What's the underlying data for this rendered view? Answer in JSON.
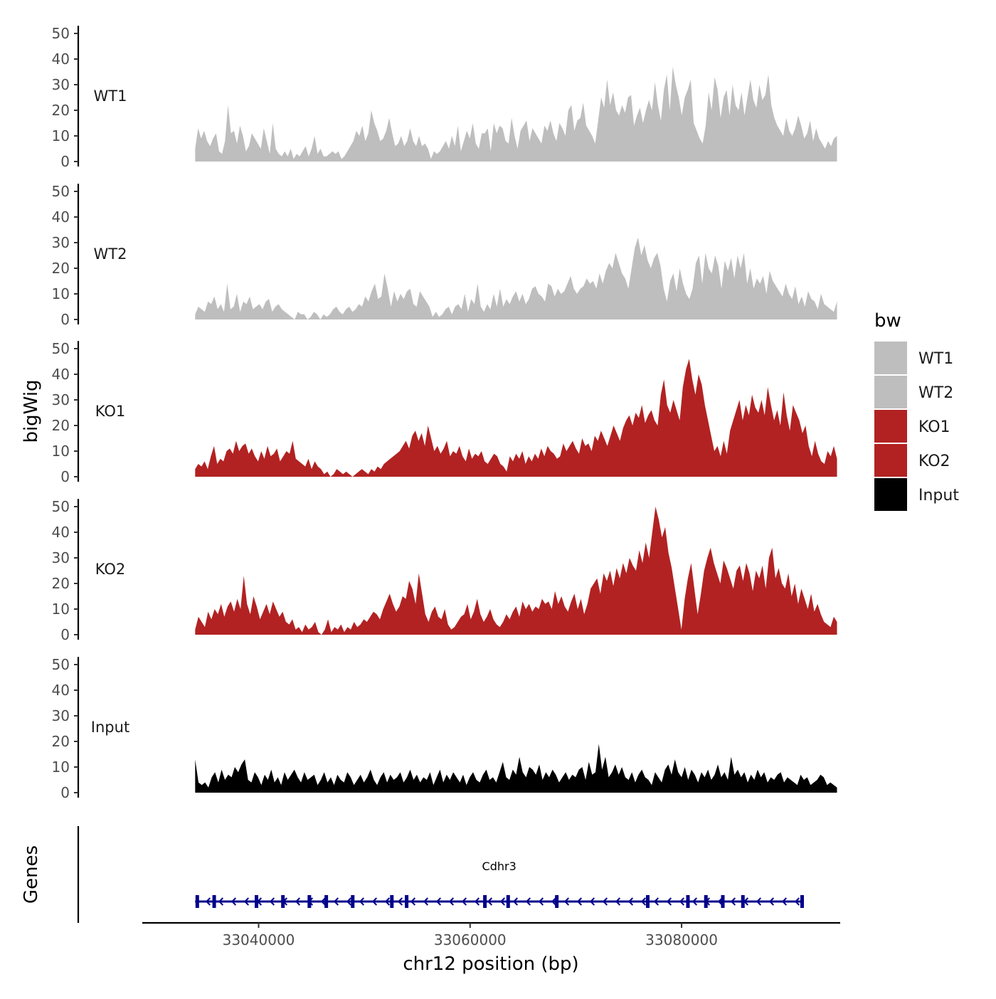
{
  "chart_data": {
    "type": "area",
    "description_title": "",
    "y_axis_title": "bigWig",
    "x_axis_title": "chr12 position (bp)",
    "genes_axis_title": "Genes",
    "xlim": [
      33029000,
      33095000
    ],
    "signal_range_bp": [
      33034000,
      33094700
    ],
    "ylim": [
      0,
      53
    ],
    "y_ticks": [
      0,
      10,
      20,
      30,
      40,
      50
    ],
    "y_tick_labels": [
      "0",
      "10",
      "20",
      "30",
      "40",
      "50"
    ],
    "x_ticks": [
      33040000,
      33060000,
      33080000
    ],
    "x_tick_labels": [
      "33040000",
      "33060000",
      "33080000"
    ],
    "legend": {
      "title": "bw",
      "entries": [
        {
          "label": "WT1",
          "color": "#bebebe"
        },
        {
          "label": "WT2",
          "color": "#bebebe"
        },
        {
          "label": "KO1",
          "color": "#b22222"
        },
        {
          "label": "KO2",
          "color": "#b22222"
        },
        {
          "label": "Input",
          "color": "#000000"
        }
      ]
    },
    "tracks": [
      {
        "name": "WT1",
        "color": "#bebebe",
        "values": [
          5,
          13,
          9,
          12,
          8,
          6,
          9,
          11,
          4,
          3,
          8,
          22,
          11,
          12,
          7,
          14,
          10,
          4,
          6,
          11,
          9,
          7,
          5,
          13,
          8,
          3,
          15,
          5,
          3,
          2,
          4,
          2,
          5,
          1,
          3,
          2,
          4,
          6,
          2,
          5,
          10,
          3,
          5,
          2,
          2,
          3,
          4,
          3,
          4,
          1,
          2,
          4,
          6,
          8,
          12,
          10,
          14,
          8,
          11,
          20,
          15,
          12,
          8,
          9,
          12,
          17,
          11,
          6,
          7,
          10,
          6,
          8,
          13,
          8,
          6,
          10,
          6,
          7,
          5,
          1,
          4,
          3,
          4,
          6,
          8,
          5,
          10,
          6,
          14,
          4,
          8,
          12,
          9,
          15,
          7,
          5,
          11,
          11,
          13,
          4,
          15,
          11,
          14,
          13,
          8,
          7,
          17,
          10,
          5,
          12,
          14,
          16,
          8,
          13,
          11,
          9,
          7,
          14,
          12,
          16,
          11,
          8,
          15,
          13,
          10,
          20,
          22,
          12,
          16,
          17,
          23,
          14,
          12,
          10,
          7,
          16,
          25,
          21,
          32,
          22,
          27,
          20,
          18,
          22,
          19,
          25,
          26,
          14,
          18,
          21,
          15,
          20,
          24,
          20,
          31,
          22,
          16,
          28,
          34,
          20,
          37,
          30,
          25,
          18,
          25,
          28,
          32,
          15,
          12,
          9,
          7,
          14,
          27,
          20,
          33,
          28,
          17,
          25,
          28,
          18,
          30,
          22,
          20,
          27,
          18,
          25,
          32,
          24,
          21,
          30,
          24,
          26,
          34,
          22,
          17,
          14,
          12,
          10,
          17,
          12,
          10,
          13,
          18,
          14,
          9,
          11,
          16,
          8,
          13,
          9,
          7,
          5,
          8,
          6,
          9,
          10
        ]
      },
      {
        "name": "WT2",
        "color": "#bebebe",
        "values": [
          2,
          5,
          4,
          3,
          7,
          6,
          9,
          4,
          6,
          3,
          14,
          4,
          5,
          10,
          3,
          7,
          6,
          9,
          4,
          5,
          6,
          4,
          7,
          8,
          3,
          5,
          6,
          4,
          3,
          2,
          1,
          0,
          3,
          2,
          2,
          0,
          1,
          3,
          2,
          0,
          2,
          1,
          2,
          4,
          5,
          3,
          2,
          4,
          5,
          3,
          4,
          6,
          5,
          9,
          7,
          11,
          14,
          8,
          9,
          18,
          12,
          5,
          11,
          7,
          10,
          8,
          11,
          12,
          6,
          5,
          11,
          9,
          7,
          5,
          1,
          3,
          1,
          2,
          4,
          5,
          2,
          5,
          6,
          4,
          10,
          3,
          8,
          6,
          14,
          5,
          3,
          6,
          4,
          10,
          5,
          12,
          5,
          8,
          6,
          9,
          11,
          7,
          10,
          6,
          8,
          12,
          13,
          10,
          9,
          7,
          14,
          13,
          9,
          12,
          10,
          11,
          14,
          17,
          12,
          10,
          12,
          13,
          16,
          14,
          15,
          12,
          18,
          14,
          19,
          22,
          20,
          26,
          22,
          18,
          16,
          12,
          20,
          28,
          32,
          25,
          29,
          23,
          20,
          24,
          26,
          21,
          12,
          7,
          15,
          18,
          11,
          20,
          14,
          10,
          8,
          12,
          22,
          25,
          14,
          26,
          20,
          18,
          25,
          21,
          12,
          23,
          19,
          24,
          16,
          25,
          20,
          26,
          14,
          20,
          12,
          16,
          14,
          17,
          10,
          19,
          15,
          13,
          11,
          9,
          14,
          10,
          8,
          13,
          6,
          9,
          5,
          11,
          8,
          7,
          4,
          10,
          6,
          5,
          4,
          3,
          7
        ]
      },
      {
        "name": "KO1",
        "color": "#b22222",
        "values": [
          3,
          5,
          4,
          6,
          3,
          8,
          12,
          5,
          7,
          6,
          10,
          11,
          9,
          14,
          10,
          12,
          13,
          9,
          11,
          8,
          6,
          10,
          7,
          12,
          8,
          9,
          11,
          6,
          8,
          10,
          9,
          14,
          7,
          6,
          5,
          4,
          7,
          3,
          6,
          4,
          3,
          1,
          2,
          0,
          1,
          3,
          2,
          1,
          2,
          1,
          0,
          1,
          2,
          3,
          2,
          1,
          3,
          2,
          4,
          3,
          5,
          6,
          7,
          8,
          9,
          10,
          12,
          14,
          11,
          16,
          18,
          14,
          17,
          12,
          20,
          15,
          10,
          12,
          9,
          11,
          14,
          8,
          10,
          9,
          12,
          8,
          6,
          11,
          7,
          9,
          8,
          10,
          6,
          5,
          7,
          9,
          8,
          5,
          4,
          2,
          8,
          6,
          9,
          7,
          10,
          5,
          8,
          6,
          9,
          7,
          11,
          8,
          12,
          10,
          9,
          7,
          8,
          13,
          10,
          12,
          14,
          11,
          9,
          15,
          12,
          13,
          10,
          16,
          14,
          18,
          15,
          12,
          16,
          20,
          17,
          14,
          19,
          22,
          24,
          20,
          25,
          23,
          28,
          21,
          24,
          26,
          22,
          20,
          32,
          38,
          28,
          25,
          30,
          26,
          22,
          35,
          42,
          46,
          38,
          32,
          40,
          36,
          28,
          22,
          16,
          10,
          12,
          8,
          14,
          9,
          18,
          22,
          26,
          30,
          22,
          28,
          24,
          32,
          27,
          25,
          30,
          24,
          35,
          28,
          22,
          26,
          20,
          33,
          24,
          18,
          28,
          25,
          22,
          17,
          20,
          12,
          8,
          14,
          9,
          6,
          5,
          10,
          8,
          12,
          7
        ]
      },
      {
        "name": "KO2",
        "color": "#b22222",
        "values": [
          2,
          7,
          5,
          3,
          9,
          6,
          10,
          8,
          12,
          7,
          11,
          13,
          9,
          14,
          10,
          23,
          12,
          8,
          15,
          11,
          6,
          9,
          12,
          8,
          13,
          10,
          7,
          9,
          5,
          4,
          6,
          2,
          3,
          1,
          4,
          2,
          3,
          5,
          1,
          0,
          2,
          6,
          1,
          3,
          2,
          4,
          1,
          3,
          2,
          5,
          3,
          4,
          6,
          5,
          7,
          9,
          8,
          6,
          10,
          13,
          16,
          12,
          9,
          11,
          15,
          14,
          21,
          18,
          12,
          24,
          16,
          8,
          5,
          9,
          11,
          7,
          6,
          10,
          4,
          2,
          3,
          5,
          7,
          8,
          12,
          6,
          9,
          14,
          8,
          5,
          7,
          10,
          6,
          4,
          3,
          5,
          8,
          6,
          9,
          11,
          7,
          13,
          10,
          12,
          9,
          11,
          10,
          14,
          12,
          13,
          10,
          17,
          12,
          15,
          11,
          9,
          13,
          16,
          10,
          14,
          8,
          12,
          18,
          20,
          22,
          16,
          24,
          21,
          25,
          19,
          26,
          22,
          28,
          24,
          30,
          27,
          25,
          33,
          28,
          36,
          30,
          40,
          50,
          45,
          38,
          42,
          32,
          26,
          18,
          10,
          2,
          14,
          22,
          28,
          18,
          8,
          16,
          25,
          30,
          34,
          28,
          24,
          20,
          29,
          26,
          22,
          18,
          25,
          27,
          21,
          28,
          24,
          17,
          25,
          22,
          27,
          18,
          30,
          34,
          22,
          26,
          20,
          18,
          24,
          15,
          20,
          12,
          18,
          14,
          10,
          16,
          9,
          12,
          8,
          5,
          4,
          3,
          7,
          5
        ]
      },
      {
        "name": "Input",
        "color": "#000000",
        "values": [
          13,
          4,
          3,
          4,
          2,
          6,
          8,
          4,
          9,
          5,
          7,
          6,
          10,
          8,
          11,
          13,
          5,
          4,
          8,
          6,
          3,
          7,
          5,
          9,
          4,
          6,
          3,
          8,
          5,
          7,
          9,
          6,
          4,
          8,
          5,
          6,
          7,
          3,
          5,
          8,
          4,
          6,
          3,
          7,
          5,
          4,
          8,
          6,
          3,
          5,
          7,
          4,
          6,
          9,
          5,
          3,
          6,
          8,
          4,
          7,
          5,
          6,
          8,
          4,
          6,
          9,
          5,
          7,
          4,
          6,
          5,
          8,
          3,
          6,
          9,
          4,
          7,
          5,
          8,
          6,
          4,
          7,
          3,
          6,
          8,
          5,
          4,
          7,
          9,
          5,
          6,
          4,
          8,
          12,
          6,
          5,
          9,
          7,
          14,
          8,
          6,
          10,
          9,
          7,
          11,
          5,
          8,
          6,
          9,
          7,
          4,
          6,
          8,
          5,
          7,
          6,
          9,
          10,
          5,
          12,
          7,
          8,
          19,
          9,
          14,
          6,
          8,
          11,
          7,
          10,
          6,
          5,
          8,
          4,
          7,
          9,
          6,
          5,
          3,
          8,
          6,
          4,
          9,
          11,
          7,
          13,
          8,
          6,
          10,
          5,
          9,
          7,
          4,
          8,
          6,
          9,
          5,
          7,
          11,
          6,
          8,
          5,
          14,
          7,
          9,
          6,
          8,
          4,
          7,
          5,
          9,
          6,
          8,
          4,
          6,
          5,
          7,
          8,
          4,
          6,
          5,
          4,
          3,
          7,
          5,
          6,
          3,
          4,
          5,
          7,
          6,
          3,
          4,
          3,
          2
        ]
      }
    ],
    "gene": {
      "name": "Cdhr3",
      "start_bp": 33034000,
      "end_bp": 33091500,
      "strand": "-",
      "color": "#00008b",
      "exon_positions_bp": [
        33034200,
        33035800,
        33039800,
        33042300,
        33044800,
        33046400,
        33048900,
        33052600,
        33054000,
        33061400,
        33063600,
        33068200,
        33076800,
        33080600,
        33082300,
        33083900,
        33085800,
        33091400
      ]
    }
  }
}
